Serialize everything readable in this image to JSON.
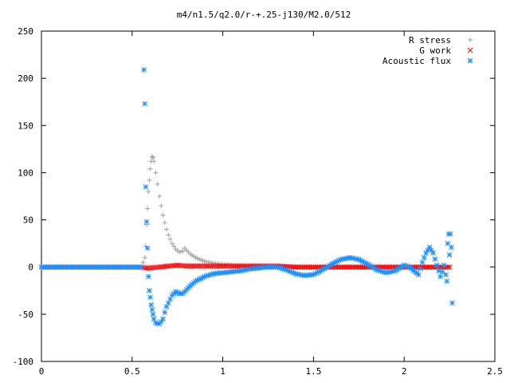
{
  "chart_data": {
    "type": "scatter",
    "title": "m4/n1.5/q2.0/r-+.25-j130/M2.0/512",
    "xlabel": "",
    "ylabel": "",
    "xlim": [
      0,
      2.5
    ],
    "ylim": [
      -100,
      250
    ],
    "x_ticks": [
      0,
      0.5,
      1,
      1.5,
      2,
      2.5
    ],
    "x_tick_labels": [
      "0",
      "0.5",
      "1",
      "1.5",
      "2",
      "2.5"
    ],
    "y_ticks": [
      -100,
      -50,
      0,
      50,
      100,
      150,
      200,
      250
    ],
    "y_tick_labels": [
      "-100",
      "-50",
      "0",
      "50",
      "100",
      "150",
      "200",
      "250"
    ],
    "grid": false,
    "legend_position": "top-right",
    "series": [
      {
        "name": "R stress",
        "marker": "plus",
        "color": "#a0a0a0",
        "x": [
          0,
          0.1,
          0.2,
          0.3,
          0.4,
          0.5,
          0.55,
          0.57,
          0.575,
          0.58,
          0.585,
          0.59,
          0.595,
          0.6,
          0.605,
          0.61,
          0.615,
          0.62,
          0.63,
          0.64,
          0.65,
          0.66,
          0.67,
          0.68,
          0.69,
          0.7,
          0.72,
          0.74,
          0.76,
          0.78,
          0.79,
          0.8,
          0.82,
          0.85,
          0.9,
          0.95,
          1.0,
          1.05,
          1.1,
          1.2,
          1.3,
          1.4,
          1.5,
          1.7,
          1.9,
          2.1,
          2.25
        ],
        "y": [
          0,
          0,
          0,
          0,
          0,
          0,
          0,
          10,
          22,
          45,
          62,
          80,
          92,
          104,
          112,
          117,
          116,
          112,
          100,
          88,
          75,
          65,
          55,
          47,
          40,
          34,
          25,
          19,
          16,
          17,
          20,
          18,
          14,
          10,
          6,
          4,
          3,
          2,
          1,
          1,
          0,
          0,
          0,
          0,
          0,
          0,
          0
        ]
      },
      {
        "name": "G work",
        "marker": "cross",
        "color": "#ff0000",
        "x": [
          0,
          0.1,
          0.2,
          0.3,
          0.4,
          0.5,
          0.55,
          0.57,
          0.6,
          0.65,
          0.7,
          0.75,
          0.8,
          0.9,
          1.0,
          1.1,
          1.2,
          1.3,
          1.4,
          1.5,
          1.6,
          1.7,
          1.8,
          1.9,
          2.0,
          2.1,
          2.2,
          2.25
        ],
        "y": [
          0,
          0,
          0,
          0,
          0,
          0,
          0,
          -1,
          -1,
          0,
          1,
          2,
          1,
          1,
          1,
          1,
          1,
          1,
          0,
          0,
          0,
          0,
          0,
          0,
          0,
          0,
          0,
          0
        ]
      },
      {
        "name": "Acoustic flux",
        "marker": "star",
        "color": "#1e90ff",
        "x": [
          0,
          0.1,
          0.2,
          0.3,
          0.4,
          0.5,
          0.55,
          0.565,
          0.57,
          0.575,
          0.58,
          0.585,
          0.59,
          0.595,
          0.6,
          0.605,
          0.61,
          0.615,
          0.62,
          0.63,
          0.64,
          0.65,
          0.66,
          0.67,
          0.68,
          0.69,
          0.7,
          0.72,
          0.74,
          0.76,
          0.78,
          0.8,
          0.82,
          0.85,
          0.9,
          0.95,
          1.0,
          1.05,
          1.1,
          1.15,
          1.2,
          1.25,
          1.3,
          1.35,
          1.4,
          1.45,
          1.5,
          1.55,
          1.6,
          1.65,
          1.7,
          1.75,
          1.8,
          1.85,
          1.9,
          1.95,
          2.0,
          2.03,
          2.06,
          2.08,
          2.1,
          2.12,
          2.14,
          2.16,
          2.18,
          2.2,
          2.21,
          2.22,
          2.23,
          2.235,
          2.24,
          2.245,
          2.25,
          2.255,
          2.26,
          2.265
        ],
        "y": [
          0,
          0,
          0,
          0,
          0,
          0,
          0,
          209,
          173,
          85,
          48,
          20,
          -10,
          -25,
          -32,
          -40,
          -45,
          -50,
          -55,
          -59,
          -60,
          -60,
          -58,
          -55,
          -48,
          -42,
          -38,
          -30,
          -26,
          -28,
          -28,
          -24,
          -20,
          -15,
          -10,
          -7,
          -6,
          -5,
          -4,
          -2,
          -1,
          0,
          0,
          -3,
          -7,
          -9,
          -8,
          -3,
          3,
          8,
          10,
          8,
          3,
          -3,
          -6,
          -4,
          2,
          0,
          -5,
          -8,
          5,
          15,
          21,
          15,
          2,
          -10,
          -5,
          2,
          -8,
          -15,
          25,
          35,
          13,
          35,
          21,
          -38
        ]
      }
    ]
  }
}
